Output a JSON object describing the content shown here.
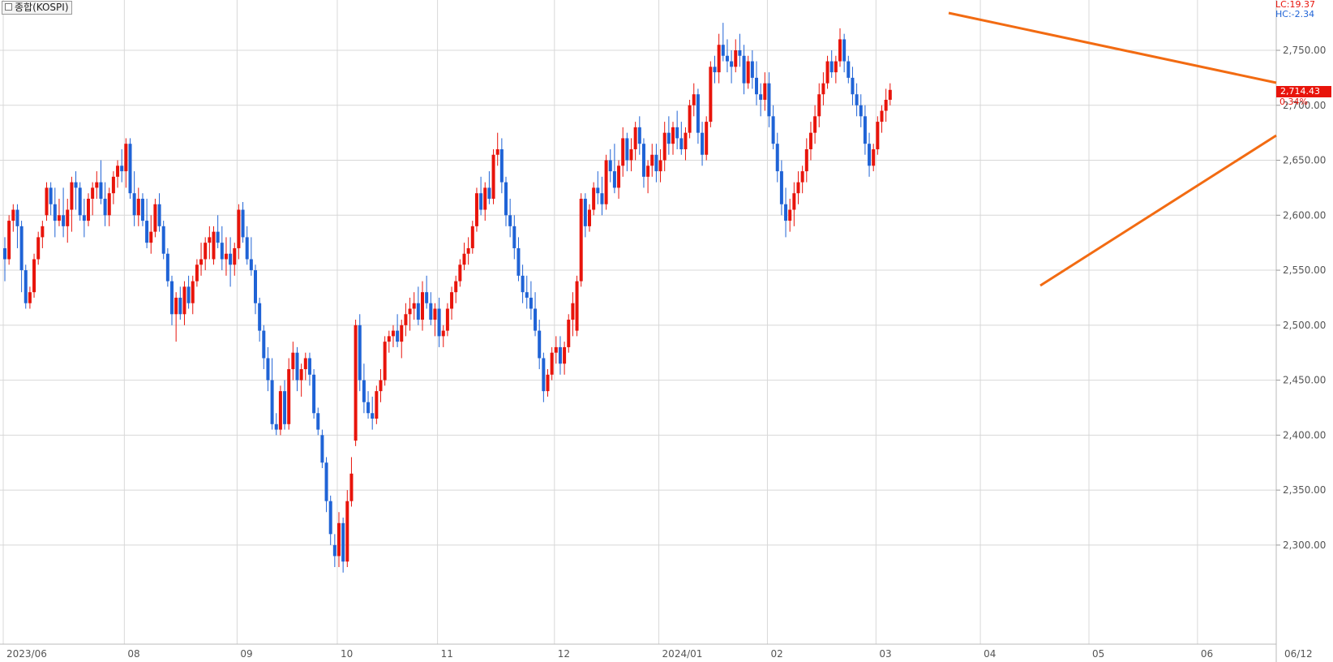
{
  "header": {
    "title": "종합(KOSPI)"
  },
  "overlay": {
    "lc_label": "LC:19.37",
    "hc_label": "HC:-2.34"
  },
  "current": {
    "price_label": "2,714.43",
    "change_label": "0.34%"
  },
  "colors": {
    "up": "#e8140b",
    "down": "#1f63d6",
    "trendline": "#f26b12",
    "grid": "#d8d8d8",
    "axis_text": "#555555"
  },
  "chart_data": {
    "type": "candlestick",
    "title": "종합(KOSPI)",
    "y_tick_labels": [
      "2,750.00",
      "2,700.00",
      "2,650.00",
      "2,600.00",
      "2,550.00",
      "2,500.00",
      "2,450.00",
      "2,400.00",
      "2,350.00",
      "2,300.00"
    ],
    "y_ticks": [
      2750,
      2700,
      2650,
      2600,
      2550,
      2500,
      2450,
      2400,
      2350,
      2300
    ],
    "ylim": [
      2260,
      2800
    ],
    "x_labels": [
      {
        "label": "2023/06",
        "i": 0
      },
      {
        "label": "08",
        "i": 29
      },
      {
        "label": "09",
        "i": 56
      },
      {
        "label": "10",
        "i": 80
      },
      {
        "label": "11",
        "i": 104
      },
      {
        "label": "12",
        "i": 132
      },
      {
        "label": "2024/01",
        "i": 157
      },
      {
        "label": "02",
        "i": 183
      },
      {
        "label": "03",
        "i": 209
      },
      {
        "label": "04",
        "i": 234
      },
      {
        "label": "05",
        "i": 260
      },
      {
        "label": "06",
        "i": 286
      },
      {
        "label": "06/12",
        "i": 302
      }
    ],
    "candles": [
      [
        2570,
        2580,
        2540,
        2560
      ],
      [
        2560,
        2600,
        2555,
        2595
      ],
      [
        2595,
        2610,
        2585,
        2605
      ],
      [
        2605,
        2610,
        2570,
        2590
      ],
      [
        2590,
        2595,
        2530,
        2550
      ],
      [
        2550,
        2555,
        2515,
        2520
      ],
      [
        2520,
        2535,
        2515,
        2530
      ],
      [
        2530,
        2565,
        2525,
        2560
      ],
      [
        2560,
        2585,
        2555,
        2580
      ],
      [
        2580,
        2595,
        2570,
        2590
      ],
      [
        2600,
        2630,
        2595,
        2625
      ],
      [
        2625,
        2630,
        2600,
        2610
      ],
      [
        2610,
        2625,
        2580,
        2595
      ],
      [
        2595,
        2615,
        2590,
        2600
      ],
      [
        2600,
        2625,
        2580,
        2590
      ],
      [
        2590,
        2615,
        2575,
        2605
      ],
      [
        2605,
        2635,
        2585,
        2630
      ],
      [
        2630,
        2640,
        2605,
        2625
      ],
      [
        2625,
        2630,
        2595,
        2600
      ],
      [
        2600,
        2615,
        2580,
        2595
      ],
      [
        2595,
        2620,
        2590,
        2615
      ],
      [
        2615,
        2630,
        2600,
        2625
      ],
      [
        2625,
        2640,
        2615,
        2630
      ],
      [
        2630,
        2650,
        2610,
        2615
      ],
      [
        2615,
        2630,
        2590,
        2600
      ],
      [
        2600,
        2625,
        2590,
        2620
      ],
      [
        2620,
        2640,
        2610,
        2635
      ],
      [
        2635,
        2650,
        2625,
        2645
      ],
      [
        2645,
        2660,
        2630,
        2640
      ],
      [
        2640,
        2670,
        2625,
        2665
      ],
      [
        2665,
        2670,
        2615,
        2620
      ],
      [
        2620,
        2640,
        2590,
        2600
      ],
      [
        2600,
        2625,
        2590,
        2615
      ],
      [
        2615,
        2620,
        2590,
        2595
      ],
      [
        2595,
        2615,
        2570,
        2575
      ],
      [
        2575,
        2600,
        2565,
        2585
      ],
      [
        2585,
        2615,
        2580,
        2610
      ],
      [
        2610,
        2620,
        2585,
        2590
      ],
      [
        2590,
        2595,
        2560,
        2565
      ],
      [
        2565,
        2570,
        2535,
        2540
      ],
      [
        2540,
        2545,
        2500,
        2510
      ],
      [
        2510,
        2530,
        2485,
        2525
      ],
      [
        2525,
        2535,
        2505,
        2510
      ],
      [
        2510,
        2540,
        2500,
        2535
      ],
      [
        2535,
        2545,
        2515,
        2520
      ],
      [
        2520,
        2545,
        2510,
        2540
      ],
      [
        2540,
        2560,
        2535,
        2555
      ],
      [
        2555,
        2575,
        2545,
        2560
      ],
      [
        2560,
        2580,
        2550,
        2575
      ],
      [
        2575,
        2590,
        2560,
        2580
      ],
      [
        2560,
        2590,
        2555,
        2585
      ],
      [
        2585,
        2600,
        2570,
        2575
      ],
      [
        2575,
        2590,
        2550,
        2560
      ],
      [
        2560,
        2580,
        2545,
        2565
      ],
      [
        2565,
        2580,
        2535,
        2555
      ],
      [
        2555,
        2575,
        2545,
        2570
      ],
      [
        2570,
        2610,
        2560,
        2605
      ],
      [
        2605,
        2612,
        2575,
        2580
      ],
      [
        2580,
        2590,
        2555,
        2560
      ],
      [
        2560,
        2580,
        2545,
        2550
      ],
      [
        2550,
        2555,
        2510,
        2520
      ],
      [
        2520,
        2525,
        2485,
        2495
      ],
      [
        2495,
        2500,
        2460,
        2470
      ],
      [
        2470,
        2480,
        2440,
        2450
      ],
      [
        2450,
        2470,
        2405,
        2410
      ],
      [
        2410,
        2420,
        2400,
        2405
      ],
      [
        2405,
        2445,
        2400,
        2440
      ],
      [
        2440,
        2450,
        2405,
        2410
      ],
      [
        2410,
        2470,
        2405,
        2460
      ],
      [
        2460,
        2485,
        2450,
        2475
      ],
      [
        2475,
        2480,
        2440,
        2450
      ],
      [
        2450,
        2465,
        2435,
        2460
      ],
      [
        2460,
        2475,
        2450,
        2470
      ],
      [
        2470,
        2475,
        2445,
        2455
      ],
      [
        2455,
        2460,
        2415,
        2420
      ],
      [
        2420,
        2425,
        2400,
        2405
      ],
      [
        2400,
        2405,
        2370,
        2375
      ],
      [
        2375,
        2380,
        2330,
        2340
      ],
      [
        2340,
        2345,
        2300,
        2310
      ],
      [
        2300,
        2310,
        2280,
        2290
      ],
      [
        2290,
        2330,
        2280,
        2320
      ],
      [
        2320,
        2325,
        2275,
        2285
      ],
      [
        2285,
        2350,
        2280,
        2340
      ],
      [
        2340,
        2380,
        2335,
        2365
      ],
      [
        2395,
        2505,
        2390,
        2500
      ],
      [
        2500,
        2510,
        2440,
        2450
      ],
      [
        2450,
        2465,
        2420,
        2430
      ],
      [
        2430,
        2440,
        2415,
        2420
      ],
      [
        2420,
        2435,
        2405,
        2415
      ],
      [
        2415,
        2445,
        2410,
        2440
      ],
      [
        2440,
        2460,
        2430,
        2450
      ],
      [
        2450,
        2490,
        2445,
        2485
      ],
      [
        2485,
        2495,
        2475,
        2490
      ],
      [
        2490,
        2500,
        2480,
        2495
      ],
      [
        2495,
        2510,
        2480,
        2485
      ],
      [
        2485,
        2505,
        2470,
        2500
      ],
      [
        2500,
        2520,
        2490,
        2510
      ],
      [
        2510,
        2525,
        2495,
        2515
      ],
      [
        2515,
        2530,
        2505,
        2520
      ],
      [
        2520,
        2535,
        2500,
        2505
      ],
      [
        2505,
        2540,
        2495,
        2530
      ],
      [
        2530,
        2545,
        2515,
        2520
      ],
      [
        2520,
        2530,
        2500,
        2505
      ],
      [
        2505,
        2520,
        2490,
        2515
      ],
      [
        2515,
        2525,
        2480,
        2490
      ],
      [
        2490,
        2500,
        2480,
        2495
      ],
      [
        2495,
        2520,
        2490,
        2515
      ],
      [
        2515,
        2535,
        2505,
        2530
      ],
      [
        2530,
        2545,
        2520,
        2540
      ],
      [
        2540,
        2560,
        2535,
        2555
      ],
      [
        2555,
        2575,
        2550,
        2565
      ],
      [
        2565,
        2580,
        2555,
        2570
      ],
      [
        2570,
        2595,
        2565,
        2590
      ],
      [
        2590,
        2625,
        2585,
        2620
      ],
      [
        2620,
        2635,
        2600,
        2605
      ],
      [
        2605,
        2630,
        2595,
        2625
      ],
      [
        2625,
        2640,
        2610,
        2615
      ],
      [
        2615,
        2660,
        2610,
        2655
      ],
      [
        2655,
        2675,
        2645,
        2660
      ],
      [
        2660,
        2670,
        2620,
        2630
      ],
      [
        2630,
        2635,
        2590,
        2600
      ],
      [
        2600,
        2615,
        2580,
        2590
      ],
      [
        2590,
        2600,
        2560,
        2570
      ],
      [
        2570,
        2580,
        2540,
        2545
      ],
      [
        2545,
        2555,
        2520,
        2530
      ],
      [
        2530,
        2545,
        2515,
        2525
      ],
      [
        2525,
        2540,
        2505,
        2515
      ],
      [
        2515,
        2530,
        2490,
        2495
      ],
      [
        2495,
        2505,
        2460,
        2470
      ],
      [
        2470,
        2475,
        2430,
        2440
      ],
      [
        2440,
        2460,
        2435,
        2455
      ],
      [
        2455,
        2480,
        2450,
        2475
      ],
      [
        2475,
        2490,
        2465,
        2480
      ],
      [
        2480,
        2490,
        2455,
        2465
      ],
      [
        2465,
        2485,
        2455,
        2480
      ],
      [
        2480,
        2510,
        2475,
        2505
      ],
      [
        2505,
        2530,
        2490,
        2520
      ],
      [
        2495,
        2545,
        2490,
        2540
      ],
      [
        2540,
        2620,
        2535,
        2615
      ],
      [
        2615,
        2620,
        2580,
        2590
      ],
      [
        2590,
        2610,
        2585,
        2605
      ],
      [
        2605,
        2630,
        2600,
        2625
      ],
      [
        2625,
        2640,
        2610,
        2620
      ],
      [
        2620,
        2635,
        2600,
        2610
      ],
      [
        2610,
        2655,
        2605,
        2650
      ],
      [
        2650,
        2660,
        2630,
        2640
      ],
      [
        2640,
        2665,
        2620,
        2625
      ],
      [
        2625,
        2650,
        2615,
        2645
      ],
      [
        2645,
        2680,
        2635,
        2670
      ],
      [
        2670,
        2675,
        2640,
        2650
      ],
      [
        2650,
        2670,
        2640,
        2660
      ],
      [
        2660,
        2685,
        2650,
        2680
      ],
      [
        2680,
        2690,
        2655,
        2665
      ],
      [
        2665,
        2670,
        2625,
        2635
      ],
      [
        2635,
        2650,
        2620,
        2645
      ],
      [
        2645,
        2665,
        2635,
        2655
      ],
      [
        2655,
        2665,
        2630,
        2640
      ],
      [
        2640,
        2660,
        2630,
        2650
      ],
      [
        2650,
        2685,
        2640,
        2675
      ],
      [
        2675,
        2690,
        2655,
        2665
      ],
      [
        2665,
        2685,
        2655,
        2680
      ],
      [
        2680,
        2695,
        2660,
        2670
      ],
      [
        2670,
        2685,
        2655,
        2660
      ],
      [
        2660,
        2680,
        2650,
        2675
      ],
      [
        2675,
        2705,
        2670,
        2700
      ],
      [
        2700,
        2720,
        2690,
        2710
      ],
      [
        2710,
        2715,
        2665,
        2675
      ],
      [
        2675,
        2685,
        2645,
        2655
      ],
      [
        2655,
        2690,
        2650,
        2685
      ],
      [
        2685,
        2740,
        2680,
        2735
      ],
      [
        2735,
        2745,
        2720,
        2730
      ],
      [
        2730,
        2765,
        2720,
        2755
      ],
      [
        2755,
        2775,
        2740,
        2745
      ],
      [
        2745,
        2760,
        2730,
        2740
      ],
      [
        2740,
        2750,
        2720,
        2735
      ],
      [
        2735,
        2760,
        2730,
        2750
      ],
      [
        2750,
        2765,
        2735,
        2745
      ],
      [
        2745,
        2755,
        2710,
        2720
      ],
      [
        2720,
        2745,
        2715,
        2740
      ],
      [
        2740,
        2750,
        2715,
        2725
      ],
      [
        2725,
        2740,
        2700,
        2710
      ],
      [
        2710,
        2720,
        2690,
        2705
      ],
      [
        2705,
        2730,
        2695,
        2720
      ],
      [
        2720,
        2730,
        2680,
        2690
      ],
      [
        2690,
        2700,
        2660,
        2665
      ],
      [
        2665,
        2675,
        2630,
        2640
      ],
      [
        2640,
        2650,
        2600,
        2610
      ],
      [
        2610,
        2625,
        2580,
        2595
      ],
      [
        2595,
        2615,
        2585,
        2605
      ],
      [
        2605,
        2630,
        2590,
        2620
      ],
      [
        2620,
        2640,
        2610,
        2630
      ],
      [
        2630,
        2645,
        2620,
        2640
      ],
      [
        2640,
        2670,
        2630,
        2660
      ],
      [
        2660,
        2685,
        2650,
        2675
      ],
      [
        2675,
        2700,
        2665,
        2690
      ],
      [
        2690,
        2720,
        2680,
        2710
      ],
      [
        2710,
        2730,
        2700,
        2720
      ],
      [
        2720,
        2745,
        2715,
        2740
      ],
      [
        2740,
        2750,
        2725,
        2730
      ],
      [
        2730,
        2745,
        2720,
        2740
      ],
      [
        2740,
        2770,
        2735,
        2760
      ],
      [
        2760,
        2765,
        2730,
        2740
      ],
      [
        2740,
        2745,
        2720,
        2725
      ],
      [
        2725,
        2735,
        2700,
        2710
      ],
      [
        2710,
        2720,
        2690,
        2700
      ],
      [
        2700,
        2710,
        2680,
        2690
      ],
      [
        2690,
        2700,
        2655,
        2665
      ],
      [
        2665,
        2675,
        2635,
        2645
      ],
      [
        2645,
        2665,
        2640,
        2660
      ],
      [
        2660,
        2690,
        2655,
        2685
      ],
      [
        2685,
        2700,
        2675,
        2695
      ],
      [
        2695,
        2715,
        2685,
        2705
      ],
      [
        2705,
        2720,
        2700,
        2714
      ]
    ]
  }
}
